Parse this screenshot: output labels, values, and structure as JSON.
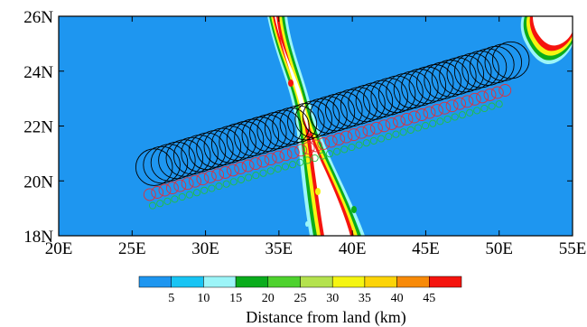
{
  "map": {
    "type": "contour-map",
    "x_range": [
      20,
      55
    ],
    "y_range": [
      18,
      26
    ],
    "x_ticks": [
      "20E",
      "25E",
      "30E",
      "35E",
      "40E",
      "45E",
      "50E",
      "55E"
    ],
    "y_ticks": [
      "18N",
      "20N",
      "22N",
      "24N",
      "26N"
    ],
    "x_tick_values": [
      20,
      25,
      30,
      35,
      40,
      45,
      50,
      55
    ],
    "y_tick_values": [
      18,
      20,
      22,
      24,
      26
    ],
    "background_color": "#1e96f0",
    "land_color": "#ffffff"
  },
  "colorbar": {
    "title": "Distance from land (km)",
    "labels": [
      "5",
      "10",
      "15",
      "20",
      "25",
      "30",
      "35",
      "40",
      "45"
    ],
    "colors": [
      "#1e96f0",
      "#18c4f4",
      "#9cf5f8",
      "#0aac1c",
      "#4ed22e",
      "#b4e24e",
      "#f5f512",
      "#fcd408",
      "#f88a08",
      "#f5140e"
    ]
  },
  "tracks": [
    {
      "color": "#000000",
      "count": 48,
      "start_lon": 26.5,
      "start_lat": 20.5,
      "end_lon": 50.8,
      "end_lat": 24.4,
      "radius_deg": 1.25
    },
    {
      "color": "#e0303a",
      "count": 48,
      "start_lon": 26.2,
      "start_lat": 19.5,
      "end_lon": 50.4,
      "end_lat": 23.3,
      "radius_deg": 0.4
    },
    {
      "color": "#22c040",
      "count": 48,
      "start_lon": 26.4,
      "start_lat": 19.1,
      "end_lon": 50.0,
      "end_lat": 22.8,
      "radius_deg": 0.22
    }
  ]
}
